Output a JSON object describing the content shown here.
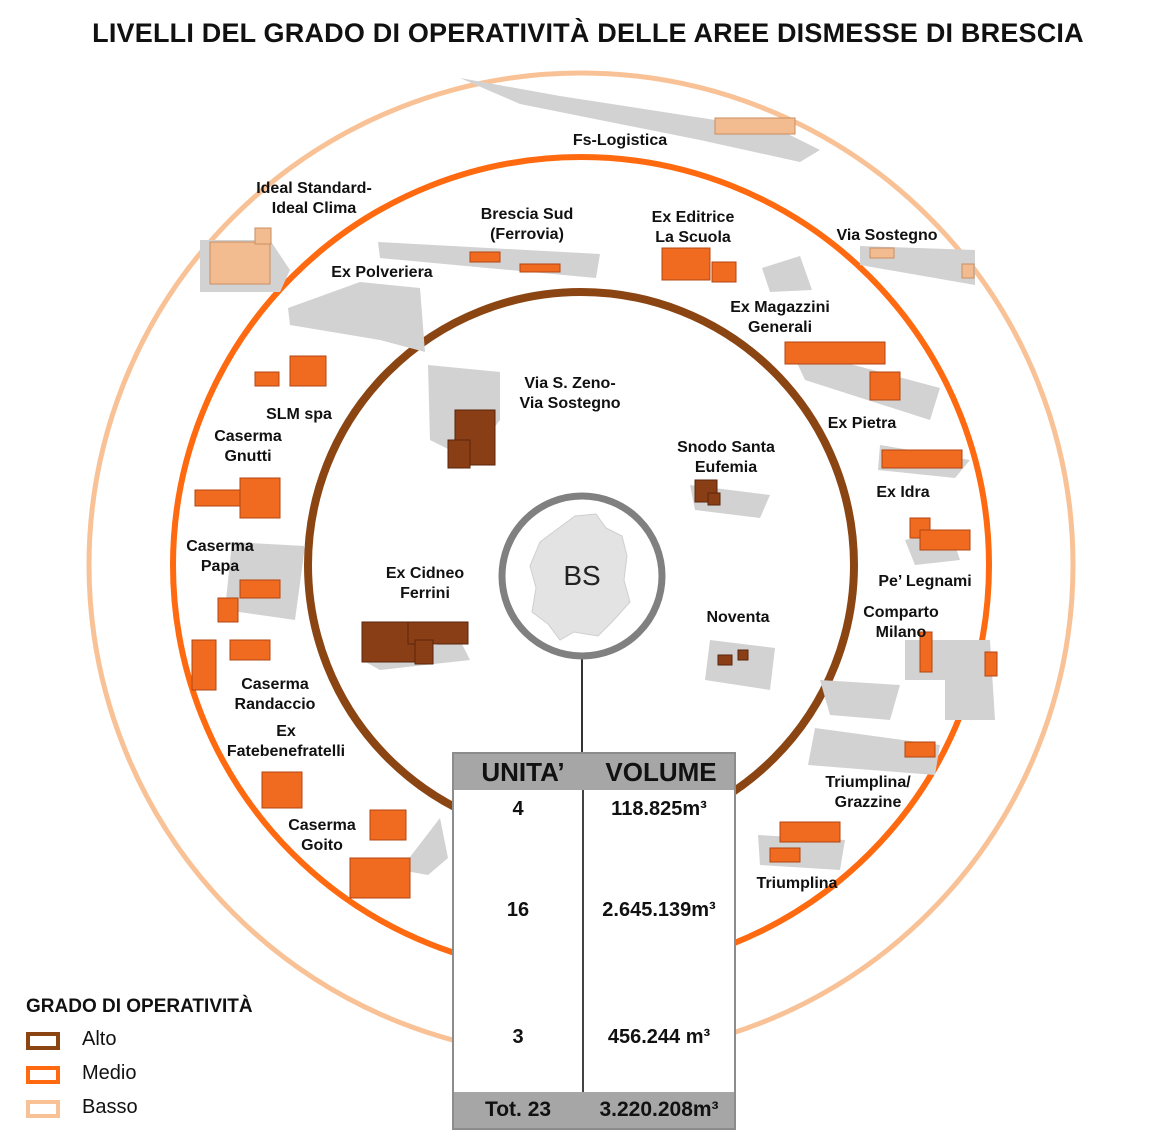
{
  "title": "LIVELLI DEL GRADO DI OPERATIVITÀ DELLE AREE DISMESSE DI BRESCIA",
  "center_label": "BS",
  "colors": {
    "alto": "#8b4513",
    "medio": "#ff6a10",
    "basso": "#f9c296",
    "center_ring": "#808080"
  },
  "areas": {
    "alto": [
      "Via S. Zeno-\nVia Sostegno",
      "Snodo Santa\nEufemia",
      "Ex Cidneo\nFerrini",
      "Noventa"
    ],
    "medio": [
      "Brescia Sud\n(Ferrovia)",
      "Ex Editrice\nLa Scuola",
      "Ex Polveriera",
      "Ex Magazzini\nGenerali",
      "SLM spa",
      "Ex Pietra",
      "Caserma\nGnutti",
      "Ex Idra",
      "Caserma\nPapa",
      "Pe’ Legnami",
      "Comparto\nMilano",
      "Caserma\nRandaccio",
      "Ex\nFatebenefratelli",
      "Caserma\nGoito",
      "Triumplina/\nGrazzine",
      "Triumplina"
    ],
    "basso": [
      "Fs-Logistica",
      "Ideal Standard-\nIdeal Clima",
      "Via Sostegno"
    ]
  },
  "table": {
    "headers": [
      "UNITA’",
      "VOLUME"
    ],
    "rows": [
      {
        "unita": "4",
        "volume": "118.825m³"
      },
      {
        "unita": "16",
        "volume": "2.645.139m³"
      },
      {
        "unita": "3",
        "volume": "456.244 m³"
      }
    ],
    "total": {
      "unita": "Tot. 23",
      "volume": "3.220.208m³"
    }
  },
  "legend": {
    "title": "GRADO DI OPERATIVITÀ",
    "items": [
      {
        "label": "Alto",
        "color": "#8b4513"
      },
      {
        "label": "Medio",
        "color": "#ff6a10"
      },
      {
        "label": "Basso",
        "color": "#f9c296"
      }
    ]
  }
}
